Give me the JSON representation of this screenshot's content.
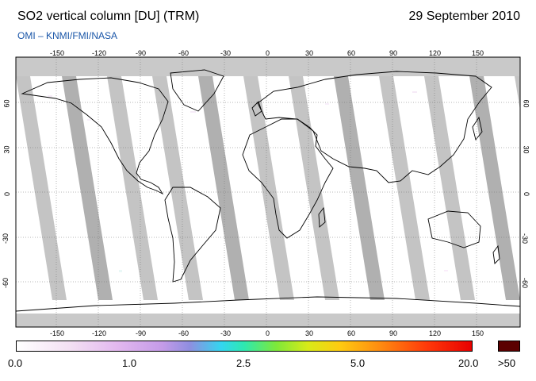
{
  "header": {
    "title": "SO2 vertical column [DU] (TRM)",
    "date": "29 September 2010",
    "subtitle": "OMI  –  KNMI/FMI/NASA"
  },
  "map": {
    "lon_ticks": [
      "-150",
      "-120",
      "-90",
      "-60",
      "-30",
      "0",
      "30",
      "60",
      "90",
      "120",
      "150"
    ],
    "lat_ticks": [
      "60",
      "30",
      "0",
      "-30",
      "-60"
    ],
    "colors": {
      "data_gap": "#a8a8a8",
      "polar": "#c8c8c8",
      "overflow": "#5b0000"
    }
  },
  "colorbar": {
    "labels": [
      "0.0",
      "1.0",
      "2.5",
      "5.0",
      "20.0"
    ],
    "overflow_label": ">50"
  }
}
